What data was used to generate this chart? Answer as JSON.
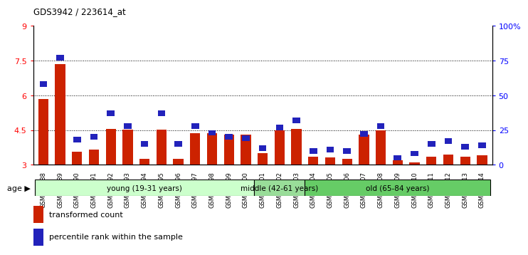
{
  "title": "GDS3942 / 223614_at",
  "samples": [
    "GSM812988",
    "GSM812989",
    "GSM812990",
    "GSM812991",
    "GSM812992",
    "GSM812993",
    "GSM812994",
    "GSM812995",
    "GSM812996",
    "GSM812997",
    "GSM812998",
    "GSM812999",
    "GSM813000",
    "GSM813001",
    "GSM813002",
    "GSM813003",
    "GSM813004",
    "GSM813005",
    "GSM813006",
    "GSM813007",
    "GSM813008",
    "GSM813009",
    "GSM813010",
    "GSM813011",
    "GSM813012",
    "GSM813013",
    "GSM813014"
  ],
  "transformed_count": [
    5.85,
    7.35,
    3.55,
    3.65,
    4.55,
    4.52,
    3.25,
    4.52,
    3.25,
    4.35,
    4.35,
    4.3,
    4.3,
    3.5,
    4.48,
    4.55,
    3.35,
    3.3,
    3.25,
    4.3,
    4.48,
    3.2,
    3.1,
    3.35,
    3.45,
    3.35,
    3.4
  ],
  "percentile_rank": [
    58,
    77,
    18,
    20,
    37,
    28,
    15,
    37,
    15,
    28,
    23,
    20,
    19,
    12,
    27,
    32,
    10,
    11,
    10,
    22,
    28,
    5,
    8,
    15,
    17,
    13,
    14
  ],
  "groups": [
    {
      "label": "young (19-31 years)",
      "start": 0,
      "end": 13,
      "color": "#ccffcc"
    },
    {
      "label": "middle (42-61 years)",
      "start": 13,
      "end": 16,
      "color": "#99dd99"
    },
    {
      "label": "old (65-84 years)",
      "start": 16,
      "end": 27,
      "color": "#66cc66"
    }
  ],
  "ylim_left": [
    3.0,
    9.0
  ],
  "yticks_left": [
    3.0,
    4.5,
    6.0,
    7.5,
    9.0
  ],
  "ylim_right": [
    0,
    100
  ],
  "yticks_right": [
    0,
    25,
    50,
    75,
    100
  ],
  "bar_color_red": "#cc2200",
  "bar_color_blue": "#2222bb",
  "grid_color": "black"
}
